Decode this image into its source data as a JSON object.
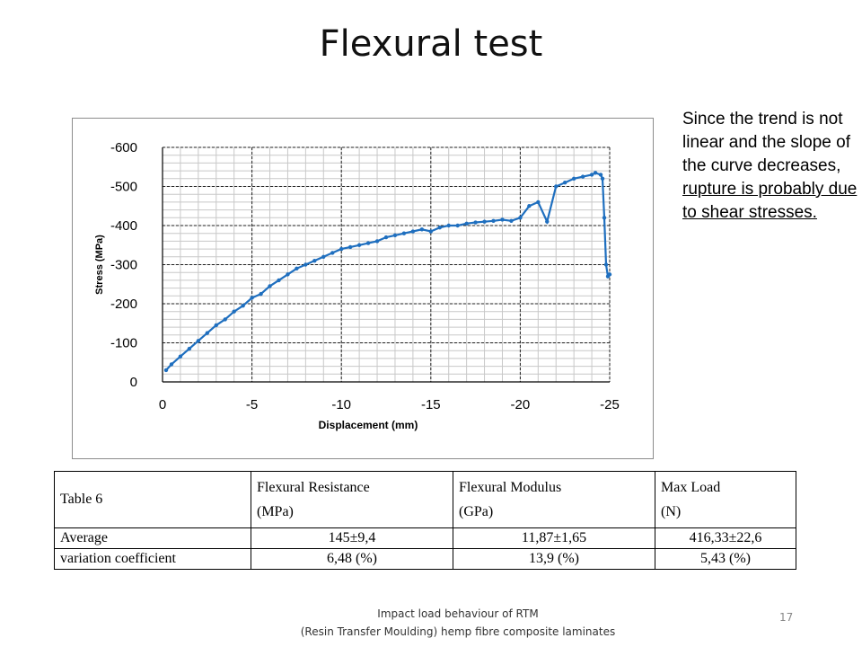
{
  "slide": {
    "title": "Flexural test",
    "note": {
      "plain": "Since the trend is not linear and the slope of the curve decreases,",
      "underlined": "rupture is probably due to shear stresses."
    },
    "footer_line1": "Impact load behaviour of RTM",
    "footer_line2": "(Resin Transfer Moulding) hemp fibre composite laminates",
    "page_number": "17"
  },
  "chart_data": {
    "type": "line",
    "xlabel": "Displacement (mm)",
    "ylabel": "Stress (MPa)",
    "xlim": [
      0,
      -25
    ],
    "ylim": [
      0,
      -600
    ],
    "x_ticks": [
      "0",
      "-5",
      "-10",
      "-15",
      "-20",
      "-25"
    ],
    "y_ticks": [
      "0",
      "-100",
      "-200",
      "-300",
      "-400",
      "-500",
      "-600"
    ],
    "grid": true,
    "line_color": "#1f6fbf",
    "series": [
      {
        "x": [
          -0.2,
          -0.5,
          -1,
          -1.5,
          -2,
          -2.5,
          -3,
          -3.5,
          -4,
          -4.5,
          -5,
          -5.5,
          -6,
          -6.5,
          -7,
          -7.5,
          -8,
          -8.5,
          -9,
          -9.5,
          -10,
          -10.5,
          -11,
          -11.5,
          -12,
          -12.5,
          -13,
          -13.5,
          -14,
          -14.5,
          -15,
          -15.5,
          -16,
          -16.5,
          -17,
          -17.5,
          -18,
          -18.5,
          -19,
          -19.5,
          -20,
          -20.5,
          -21,
          -21.5,
          -22,
          -22.5,
          -23,
          -23.5,
          -24,
          -24.2,
          -24.5,
          -24.6,
          -24.7,
          -24.8,
          -24.9,
          -25
        ],
        "y": [
          -30,
          -45,
          -65,
          -85,
          -105,
          -125,
          -145,
          -160,
          -180,
          -195,
          -215,
          -225,
          -245,
          -260,
          -275,
          -290,
          -300,
          -310,
          -320,
          -330,
          -340,
          -345,
          -350,
          -355,
          -360,
          -370,
          -375,
          -380,
          -385,
          -390,
          -385,
          -395,
          -400,
          -400,
          -405,
          -408,
          -410,
          -412,
          -415,
          -412,
          -420,
          -450,
          -460,
          -410,
          -500,
          -510,
          -520,
          -525,
          -530,
          -535,
          -530,
          -520,
          -420,
          -300,
          -270,
          -275
        ]
      }
    ]
  },
  "table": {
    "caption": "Table 6",
    "col1_line1": "Flexural Resistance",
    "col1_line2": "(MPa)",
    "col2_line1": "Flexural Modulus",
    "col2_line2": "(GPa)",
    "col3_line1": "Max Load",
    "col3_line2": "(N)",
    "rows": [
      {
        "label": "Average",
        "v1": "145±9,4",
        "v2": "11,87±1,65",
        "v3": "416,33±22,6"
      },
      {
        "label": "variation coefficient",
        "v1": "6,48 (%)",
        "v2": "13,9 (%)",
        "v3": "5,43 (%)"
      }
    ]
  }
}
